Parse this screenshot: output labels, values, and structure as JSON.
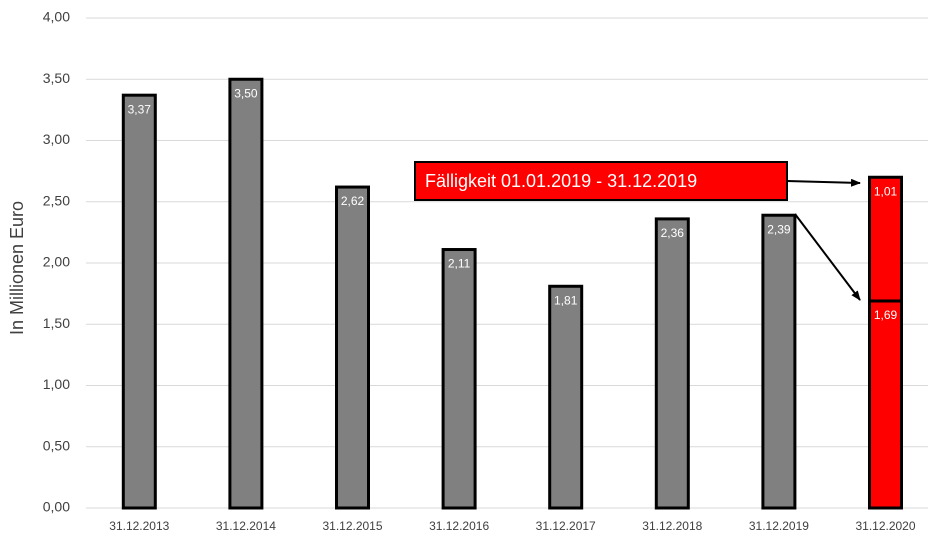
{
  "chart_data": {
    "type": "bar",
    "stacked": true,
    "y_label": "In Millionen Euro",
    "annotation": "Fälligkeit 01.01.2019 - 31.12.2019",
    "categories": [
      "31.12.2013",
      "31.12.2014",
      "31.12.2015",
      "31.12.2016",
      "31.12.2017",
      "31.12.2018",
      "31.12.2019",
      "31.12.2020"
    ],
    "series": [
      {
        "color": "#808080",
        "values": [
          3.37,
          3.5,
          2.62,
          2.11,
          1.81,
          2.36,
          2.39,
          null
        ],
        "value_labels": [
          "3,37",
          "3,50",
          "2,62",
          "2,11",
          "1,81",
          "2,36",
          "2,39",
          null
        ]
      },
      {
        "color": "#ff0000",
        "values": [
          null,
          null,
          null,
          null,
          null,
          null,
          null,
          1.69
        ],
        "value_labels": [
          null,
          null,
          null,
          null,
          null,
          null,
          null,
          "1,69"
        ]
      },
      {
        "color": "#ff0000",
        "values": [
          null,
          null,
          null,
          null,
          null,
          null,
          null,
          1.01
        ],
        "value_labels": [
          null,
          null,
          null,
          null,
          null,
          null,
          null,
          "1,01"
        ]
      }
    ],
    "ylim": [
      0,
      4
    ],
    "yticks": [
      {
        "value": 0,
        "label": "0,00"
      },
      {
        "value": 0.5,
        "label": "0,50"
      },
      {
        "value": 1,
        "label": "1,00"
      },
      {
        "value": 1.5,
        "label": "1,50"
      },
      {
        "value": 2,
        "label": "2,00"
      },
      {
        "value": 2.5,
        "label": "2,50"
      },
      {
        "value": 3,
        "label": "3,00"
      },
      {
        "value": 3.5,
        "label": "3,50"
      },
      {
        "value": 4,
        "label": "4,00"
      }
    ],
    "grid": true
  }
}
